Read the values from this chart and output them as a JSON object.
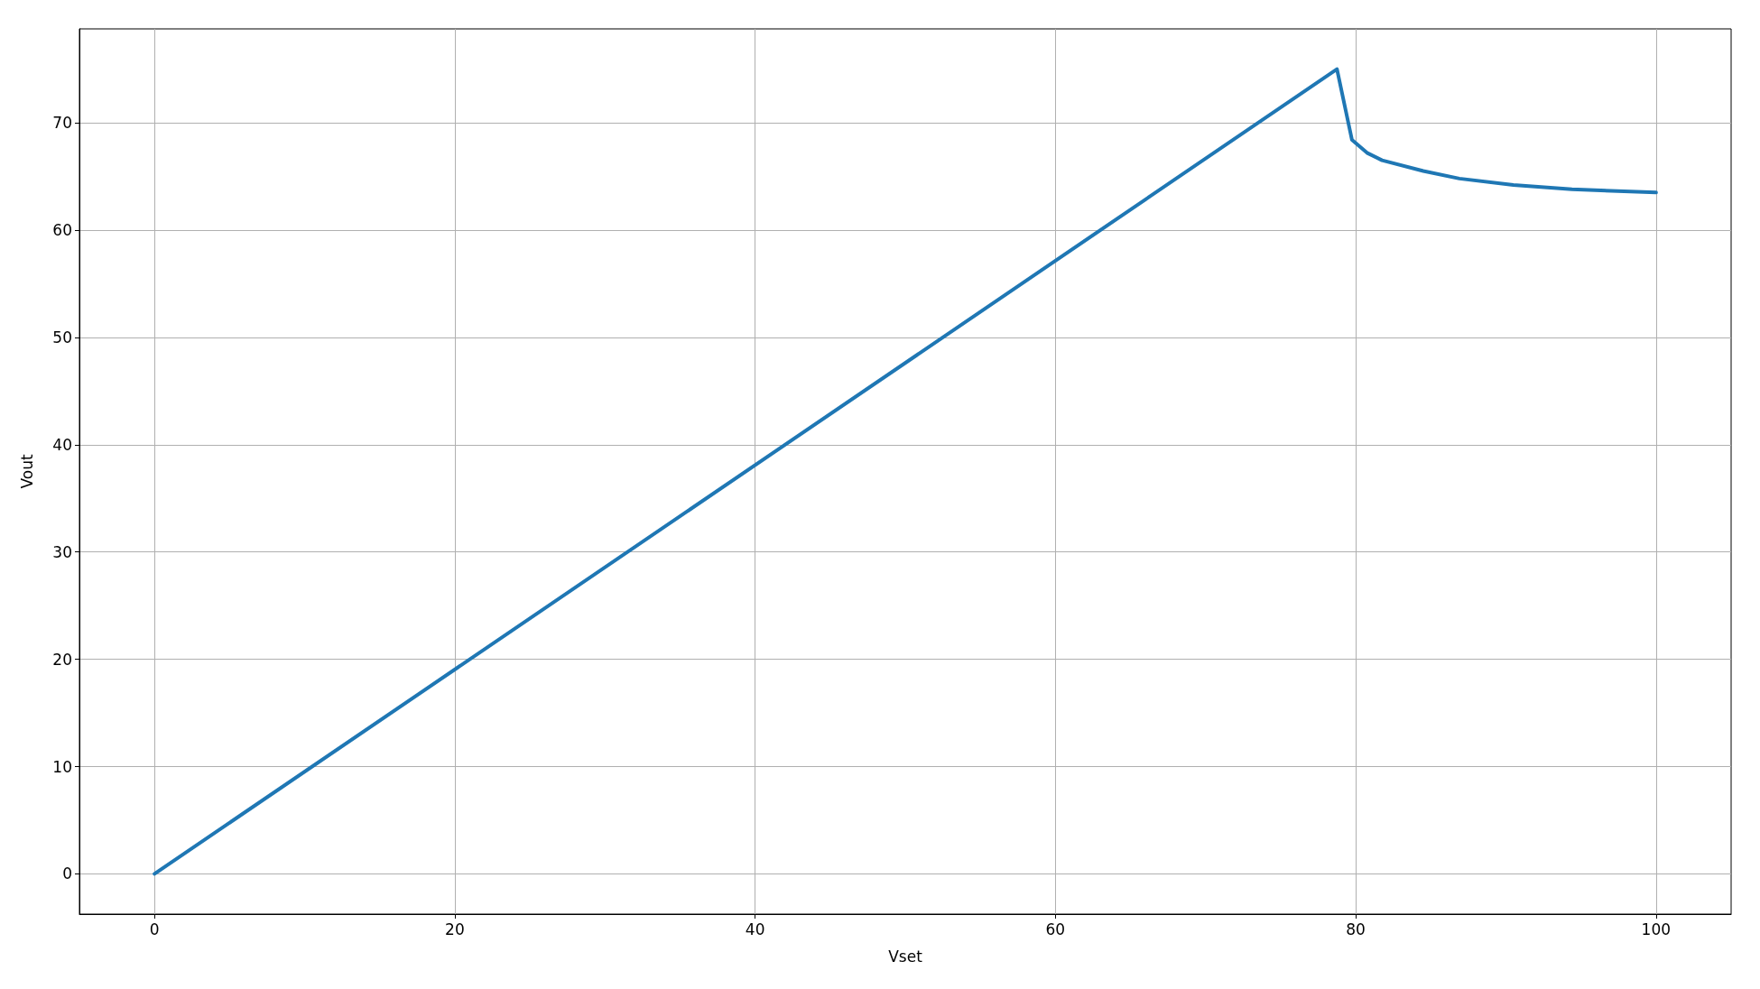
{
  "chart_data": {
    "type": "line",
    "xlabel": "Vset",
    "ylabel": "Vout",
    "x": [
      0,
      78.75,
      79.75,
      80.75,
      81.75,
      84.5,
      86.9,
      90.5,
      94.4,
      100
    ],
    "series": [
      {
        "color": "#1f77b4",
        "values": [
          0,
          75,
          68.4,
          67.2,
          66.5,
          65.5,
          64.8,
          64.2,
          63.8,
          63.5
        ]
      }
    ],
    "xlim": [
      -5,
      105
    ],
    "xticks": [
      0,
      20,
      40,
      60,
      80,
      100
    ],
    "ylim": [
      -3.75,
      78.75
    ],
    "yticks": [
      0,
      10,
      20,
      30,
      40,
      50,
      60,
      70
    ],
    "grid": true,
    "marker": "none",
    "line_style": "solid"
  }
}
